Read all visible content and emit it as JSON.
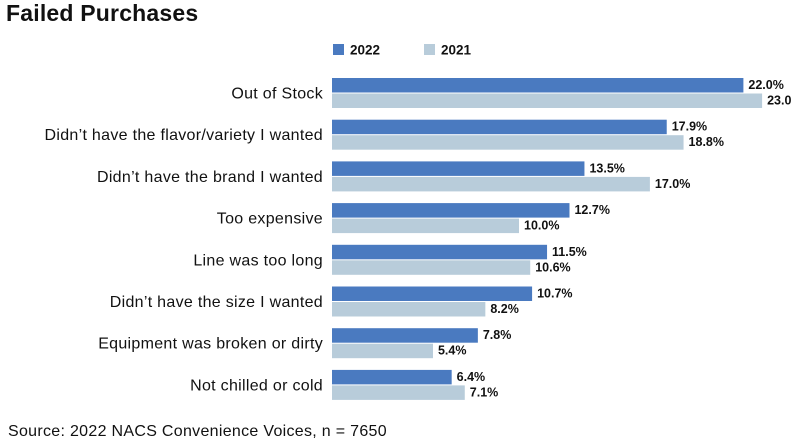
{
  "chart_data": {
    "type": "bar",
    "orientation": "horizontal",
    "title": "Failed Purchases",
    "source": "Source: 2022 NACS Convenience Voices, n = 7650",
    "xlabel": "",
    "ylabel": "",
    "xlim": [
      0,
      23
    ],
    "grid": false,
    "legend_position": "top",
    "categories": [
      "Out of Stock",
      "Didn’t have the flavor/variety I wanted",
      "Didn’t have the brand I wanted",
      "Too expensive",
      "Line was too long",
      "Didn’t have the size I wanted",
      "Equipment was broken or dirty",
      "Not chilled or cold"
    ],
    "series": [
      {
        "name": "2022",
        "color": "#4a7ac0",
        "values": [
          22.0,
          17.9,
          13.5,
          12.7,
          11.5,
          10.7,
          7.8,
          6.4
        ],
        "labels": [
          "22.0%",
          "17.9%",
          "13.5%",
          "12.7%",
          "11.5%",
          "10.7%",
          "7.8%",
          "6.4%"
        ]
      },
      {
        "name": "2021",
        "color": "#b8ccda",
        "values": [
          23.0,
          18.8,
          17.0,
          10.0,
          10.6,
          8.2,
          5.4,
          7.1
        ],
        "labels": [
          "23.0",
          "18.8%",
          "17.0%",
          "10.0%",
          "10.6%",
          "8.2%",
          "5.4%",
          "7.1%"
        ]
      }
    ]
  }
}
